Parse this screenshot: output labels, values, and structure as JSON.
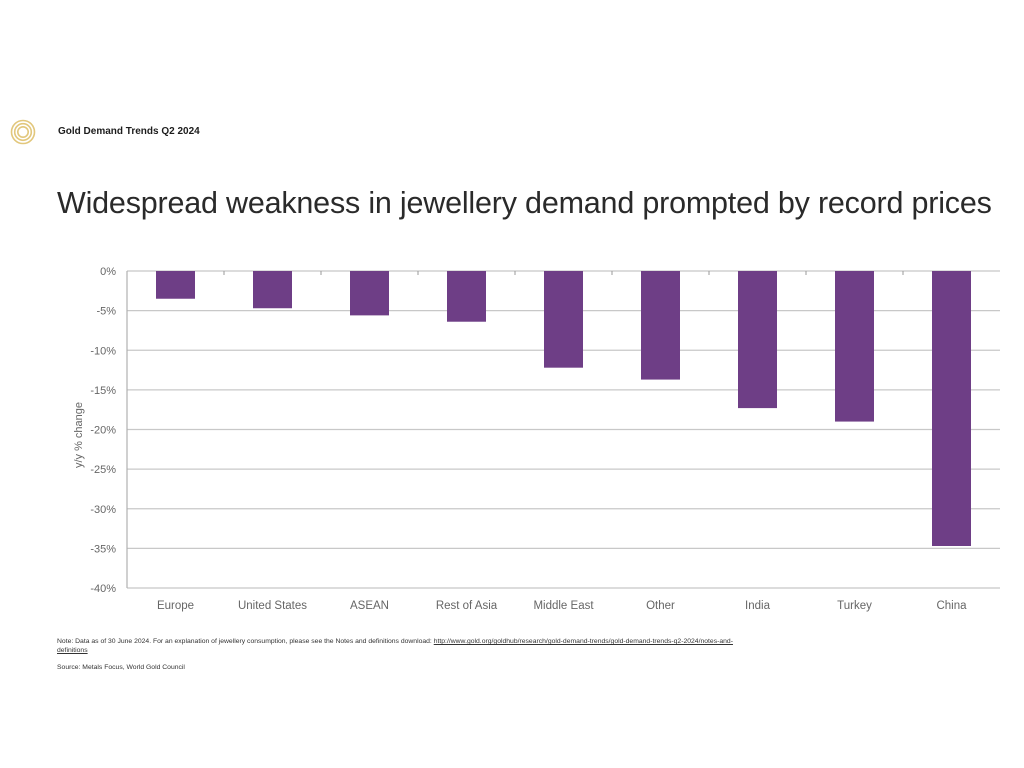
{
  "header": {
    "brand": "Gold Demand Trends Q2 2024",
    "logo_icon": "gold-rings-logo-icon"
  },
  "title": "Widespread weakness in jewellery demand prompted by record prices",
  "chart_data": {
    "type": "bar",
    "title": "Widespread weakness in jewellery demand prompted by record prices",
    "xlabel": "",
    "ylabel": "y/y % change",
    "categories": [
      "Europe",
      "United States",
      "ASEAN",
      "Rest of Asia",
      "Middle East",
      "Other",
      "India",
      "Turkey",
      "China"
    ],
    "values": [
      -3.5,
      -4.7,
      -5.6,
      -6.4,
      -12.2,
      -13.7,
      -17.3,
      -19.0,
      -34.7
    ],
    "ylim": [
      -40,
      0
    ],
    "yticks": [
      0,
      -5,
      -10,
      -15,
      -20,
      -25,
      -30,
      -35,
      -40
    ],
    "ytick_labels": [
      "0%",
      "-5%",
      "-10%",
      "-15%",
      "-20%",
      "-25%",
      "-30%",
      "-35%",
      "-40%"
    ],
    "grid": true,
    "legend": "none",
    "bar_color": "#6e3e86"
  },
  "footer": {
    "note_prefix": "Note: Data as of 30 June 2024. For an explanation of jewellery consumption, please see the Notes and definitions download: ",
    "note_link": "http://www.gold.org/goldhub/research/gold-demand-trends/gold-demand-trends-q2-2024/notes-and-definitions",
    "source": "Source: Metals Focus, World Gold Council"
  }
}
